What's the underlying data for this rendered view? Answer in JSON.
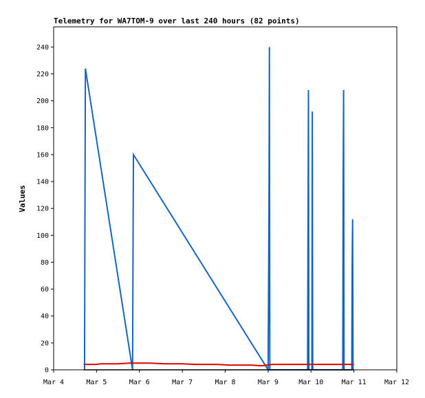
{
  "chart_data": {
    "type": "line",
    "title": "Telemetry for WA7TOM-9 over last 240 hours (82 points)",
    "ylabel": "Values",
    "xlabel": "",
    "xlim": [
      "Mar 4",
      "Mar 12"
    ],
    "ylim": [
      0,
      255
    ],
    "x_ticks": [
      "Mar 4",
      "Mar 5",
      "Mar 6",
      "Mar 7",
      "Mar 8",
      "Mar 9",
      "Mar 10",
      "Mar 11",
      "Mar 12"
    ],
    "y_ticks": [
      0,
      20,
      40,
      60,
      80,
      100,
      120,
      140,
      160,
      180,
      200,
      220,
      240
    ],
    "grid": false,
    "legend": "none",
    "x_unit": "days since Mar 4",
    "series": [
      {
        "color": "#1565c0",
        "points": [
          [
            0.72,
            0
          ],
          [
            0.74,
            224
          ],
          [
            1.84,
            0
          ],
          [
            1.86,
            160
          ],
          [
            5.0,
            0
          ],
          [
            5.02,
            120
          ],
          [
            5.03,
            240
          ],
          [
            5.04,
            0
          ],
          [
            5.92,
            0
          ],
          [
            5.93,
            104
          ],
          [
            5.94,
            208
          ],
          [
            5.95,
            0
          ],
          [
            6.02,
            0
          ],
          [
            6.03,
            192
          ],
          [
            6.04,
            0
          ],
          [
            6.74,
            0
          ],
          [
            6.75,
            144
          ],
          [
            6.76,
            208
          ],
          [
            6.77,
            0
          ],
          [
            6.95,
            0
          ],
          [
            6.96,
            80
          ],
          [
            6.97,
            112
          ],
          [
            6.98,
            0
          ]
        ]
      },
      {
        "color": "#e00000",
        "points": [
          [
            0.7,
            4
          ],
          [
            1.0,
            4
          ],
          [
            1.1,
            4.5
          ],
          [
            1.5,
            4.5
          ],
          [
            1.75,
            5
          ],
          [
            2.25,
            5
          ],
          [
            2.6,
            4.5
          ],
          [
            3.0,
            4.5
          ],
          [
            3.3,
            4
          ],
          [
            3.8,
            4
          ],
          [
            4.1,
            3.5
          ],
          [
            4.6,
            3.5
          ],
          [
            4.85,
            3
          ],
          [
            5.1,
            4
          ],
          [
            6.0,
            4
          ],
          [
            7.0,
            4
          ]
        ]
      },
      {
        "color": "#000000",
        "points": [
          [
            0.7,
            0
          ],
          [
            7.0,
            0
          ]
        ]
      }
    ]
  }
}
